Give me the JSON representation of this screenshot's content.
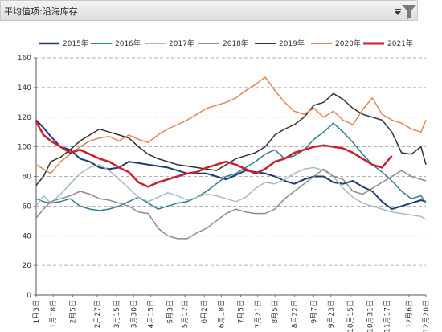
{
  "toolbar": {
    "title": "平均值项:沿海库存",
    "dropdown_icon": "dropdown-arrow-icon",
    "filter_icon": "funnel-filter-icon"
  },
  "chart_data": {
    "type": "line",
    "title": "",
    "xlabel": "",
    "ylabel": "",
    "ylim": [
      0,
      160
    ],
    "yticks": [
      0,
      20,
      40,
      60,
      80,
      100,
      120,
      140,
      160
    ],
    "grid": true,
    "grid_style": "dashed horizontal",
    "legend_position": "top",
    "x_tick_labels": [
      "1月3日",
      "1月18日",
      "2月5日",
      "2月27日",
      "3月15日",
      "3月30日",
      "4月15日",
      "5月3日",
      "5月17日",
      "6月2日",
      "6月18日",
      "7月5日",
      "7月21日",
      "8月5日",
      "8月22日",
      "9月7日",
      "9月23日",
      "10月15日",
      "10月31日",
      "11月17日",
      "12月6日",
      "12月20日"
    ],
    "x_positions": [
      0,
      0.7,
      1.5,
      2.5,
      3.3,
      4,
      4.7,
      5.5,
      6.1,
      6.9,
      7.6,
      8.4,
      9.1,
      9.8,
      10.6,
      11.4,
      12.1,
      12.9,
      13.7,
      14.4,
      15.3,
      16
    ],
    "series": [
      {
        "name": "2015年",
        "color": "#1f3b73",
        "width": 2,
        "x": [
          0,
          0.3,
          0.6,
          1,
          1.4,
          1.8,
          2.2,
          2.6,
          3,
          3.4,
          3.8,
          4.2,
          4.6,
          5,
          5.4,
          5.8,
          6.2,
          6.6,
          7,
          7.4,
          7.8,
          8.2,
          8.6,
          9,
          9.4,
          9.8,
          10.2,
          10.6,
          11,
          11.4,
          11.8,
          12.2,
          12.6,
          13,
          13.4,
          13.8,
          14.2,
          14.6,
          15,
          15.4,
          15.8,
          16
        ],
        "values": [
          118,
          113,
          107,
          100,
          98,
          92,
          90,
          86,
          85,
          86,
          90,
          89,
          88,
          87,
          86,
          84,
          82,
          82,
          82,
          80,
          78,
          81,
          84,
          83,
          82,
          80,
          77,
          75,
          78,
          80,
          80,
          76,
          75,
          77,
          73,
          70,
          63,
          58,
          60,
          62,
          64,
          63
        ]
      },
      {
        "name": "2016年",
        "color": "#2f7f8c",
        "width": 1.5,
        "x": [
          0,
          0.3,
          0.6,
          1,
          1.4,
          1.8,
          2.2,
          2.6,
          3,
          3.4,
          3.8,
          4.2,
          4.6,
          5,
          5.4,
          5.8,
          6.2,
          6.6,
          7,
          7.4,
          7.8,
          8.2,
          8.6,
          9,
          9.4,
          9.8,
          10.2,
          10.6,
          11,
          11.4,
          11.8,
          12.2,
          12.6,
          13,
          13.4,
          13.8,
          14.2,
          14.6,
          15,
          15.4,
          15.8,
          16
        ],
        "values": [
          65,
          63,
          62,
          63,
          65,
          60,
          58,
          57,
          58,
          60,
          63,
          66,
          62,
          58,
          60,
          62,
          63,
          66,
          70,
          75,
          80,
          82,
          86,
          90,
          95,
          98,
          92,
          94,
          98,
          105,
          110,
          116,
          110,
          103,
          95,
          88,
          83,
          77,
          70,
          65,
          67,
          62
        ]
      },
      {
        "name": "2017年",
        "color": "#a8bcc4",
        "width": 1.5,
        "x": [
          0,
          0.3,
          0.6,
          1,
          1.4,
          1.8,
          2.2,
          2.6,
          3,
          3.4,
          3.8,
          4.2,
          4.6,
          5,
          5.4,
          5.8,
          6.2,
          6.6,
          7,
          7.4,
          7.8,
          8.2,
          8.6,
          9,
          9.4,
          9.8,
          10.2,
          10.6,
          11,
          11.4,
          11.8,
          12.2,
          12.6,
          13,
          13.4,
          13.8,
          14.2,
          14.6,
          15,
          15.4,
          15.8,
          16
        ],
        "values": [
          60,
          67,
          62,
          68,
          75,
          82,
          86,
          88,
          84,
          78,
          72,
          66,
          63,
          66,
          69,
          67,
          64,
          66,
          68,
          67,
          65,
          63,
          66,
          72,
          76,
          75,
          78,
          82,
          85,
          86,
          84,
          80,
          72,
          66,
          62,
          60,
          58,
          56,
          55,
          54,
          53,
          51
        ]
      },
      {
        "name": "2018年",
        "color": "#8c8c8c",
        "width": 1.5,
        "x": [
          0,
          0.3,
          0.6,
          1,
          1.4,
          1.8,
          2.2,
          2.6,
          3,
          3.4,
          3.8,
          4.2,
          4.6,
          5,
          5.4,
          5.8,
          6.2,
          6.6,
          7,
          7.4,
          7.8,
          8.2,
          8.6,
          9,
          9.4,
          9.8,
          10.2,
          10.6,
          11,
          11.4,
          11.8,
          12.2,
          12.6,
          13,
          13.4,
          13.8,
          14.2,
          14.6,
          15,
          15.4,
          15.8,
          16
        ],
        "values": [
          52,
          58,
          63,
          65,
          67,
          70,
          68,
          65,
          64,
          62,
          60,
          56,
          55,
          45,
          40,
          38,
          38,
          42,
          45,
          50,
          55,
          58,
          56,
          55,
          55,
          58,
          65,
          70,
          75,
          80,
          85,
          80,
          78,
          70,
          68,
          72,
          76,
          80,
          84,
          80,
          78,
          77
        ]
      },
      {
        "name": "2019年",
        "color": "#333333",
        "width": 1.5,
        "x": [
          0,
          0.3,
          0.6,
          1,
          1.4,
          1.8,
          2.2,
          2.6,
          3,
          3.4,
          3.8,
          4.2,
          4.6,
          5,
          5.4,
          5.8,
          6.2,
          6.6,
          7,
          7.4,
          7.8,
          8.2,
          8.6,
          9,
          9.4,
          9.8,
          10.2,
          10.6,
          11,
          11.4,
          11.8,
          12.2,
          12.6,
          13,
          13.4,
          13.8,
          14.2,
          14.6,
          15,
          15.4,
          15.8,
          16
        ],
        "values": [
          74,
          80,
          90,
          93,
          98,
          104,
          108,
          112,
          110,
          108,
          106,
          100,
          95,
          92,
          90,
          88,
          87,
          86,
          85,
          84,
          88,
          92,
          94,
          96,
          100,
          108,
          112,
          115,
          120,
          128,
          130,
          136,
          132,
          126,
          122,
          120,
          118,
          110,
          96,
          95,
          100,
          88
        ]
      },
      {
        "name": "2020年",
        "color": "#e0865a",
        "width": 1.5,
        "x": [
          0,
          0.3,
          0.6,
          1,
          1.4,
          1.8,
          2.2,
          2.6,
          3,
          3.4,
          3.8,
          4.2,
          4.6,
          5,
          5.4,
          5.8,
          6.2,
          6.6,
          7,
          7.4,
          7.8,
          8.2,
          8.6,
          9,
          9.4,
          9.8,
          10.2,
          10.6,
          11,
          11.4,
          11.8,
          12.2,
          12.6,
          13,
          13.4,
          13.8,
          14.2,
          14.6,
          15,
          15.4,
          15.8,
          16
        ],
        "values": [
          88,
          85,
          82,
          90,
          95,
          100,
          104,
          106,
          107,
          104,
          108,
          105,
          103,
          108,
          112,
          115,
          118,
          122,
          126,
          128,
          130,
          133,
          138,
          142,
          147,
          138,
          130,
          124,
          122,
          126,
          120,
          124,
          118,
          115,
          125,
          133,
          122,
          118,
          116,
          112,
          110,
          118
        ]
      },
      {
        "name": "2021年",
        "color": "#cc1f2e",
        "width": 2.5,
        "x": [
          0,
          0.3,
          0.6,
          1,
          1.4,
          1.8,
          2.2,
          2.6,
          3,
          3.4,
          3.8,
          4.2,
          4.6,
          5,
          5.4,
          5.8,
          6.2,
          6.6,
          7,
          7.4,
          7.8,
          8.2,
          8.6,
          9,
          9.4,
          9.8,
          10.2,
          10.6,
          11,
          11.4,
          11.8,
          12.2,
          12.6,
          13,
          13.4,
          13.8,
          14.2,
          14.6
        ],
        "values": [
          117,
          108,
          104,
          100,
          96,
          98,
          95,
          92,
          90,
          86,
          83,
          76,
          73,
          76,
          78,
          80,
          82,
          83,
          86,
          88,
          90,
          88,
          85,
          82,
          85,
          90,
          92,
          96,
          98,
          100,
          101,
          100,
          99,
          96,
          92,
          88,
          86,
          94
        ]
      }
    ]
  }
}
